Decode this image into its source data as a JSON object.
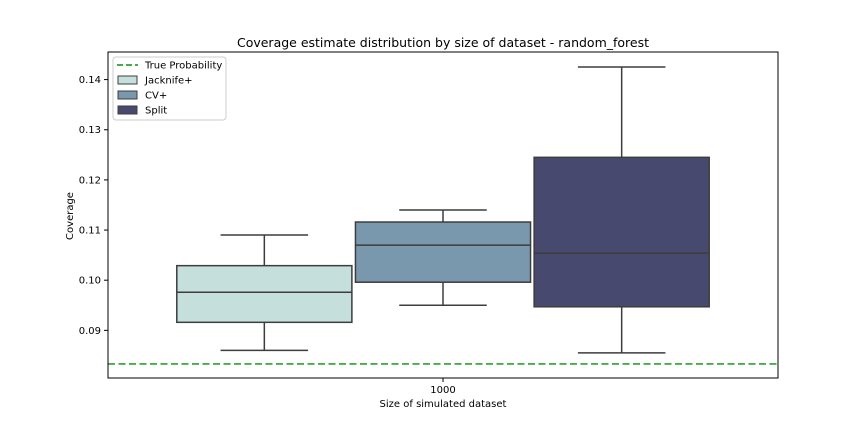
{
  "chart_data": {
    "type": "box",
    "title": "Coverage estimate distribution by size of dataset - random_forest",
    "xlabel": "Size of simulated dataset",
    "ylabel": "Coverage",
    "categories": [
      "1000"
    ],
    "ylim": [
      0.0805,
      0.1455
    ],
    "yticks": [
      0.09,
      0.1,
      0.11,
      0.12,
      0.13,
      0.14
    ],
    "ytick_labels": [
      "0.09",
      "0.10",
      "0.11",
      "0.12",
      "0.13",
      "0.14"
    ],
    "grid": false,
    "legend_position": "top-left",
    "reference_line": {
      "name": "True Probability",
      "value": 0.0833,
      "color": "#2ca02c",
      "style": "dashed"
    },
    "series": [
      {
        "name": "Jacknife+",
        "color": "#c5dfdd",
        "whisker_low": 0.086,
        "q1": 0.0916,
        "median": 0.0976,
        "q3": 0.1029,
        "whisker_high": 0.109
      },
      {
        "name": "CV+",
        "color": "#7a98ad",
        "whisker_low": 0.095,
        "q1": 0.0996,
        "median": 0.107,
        "q3": 0.1116,
        "whisker_high": 0.114
      },
      {
        "name": "Split",
        "color": "#474a6e",
        "whisker_low": 0.0855,
        "q1": 0.0947,
        "median": 0.1054,
        "q3": 0.1245,
        "whisker_high": 0.1425
      }
    ]
  }
}
